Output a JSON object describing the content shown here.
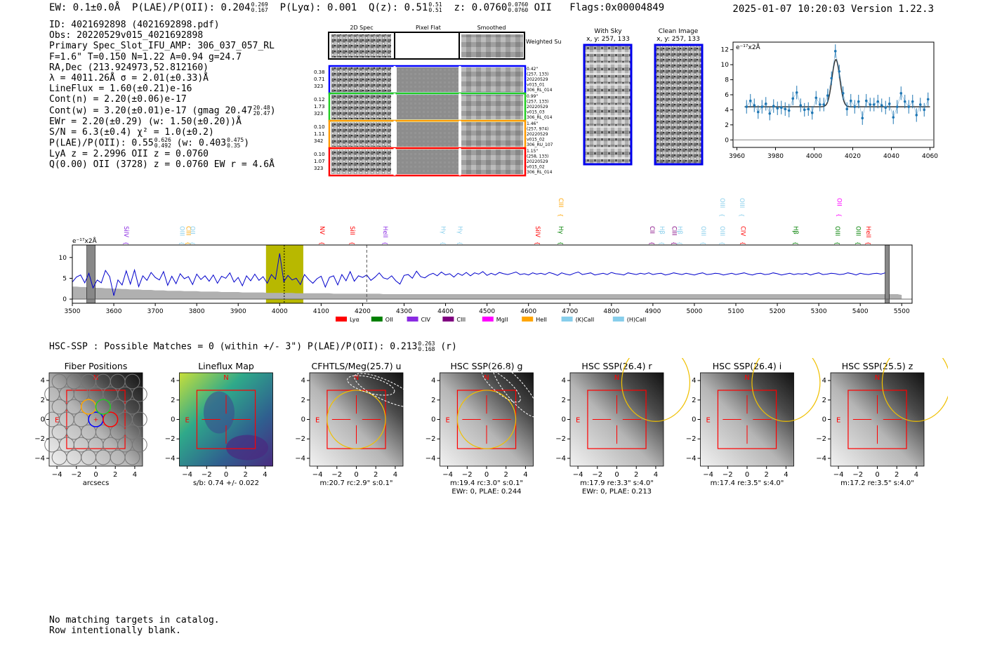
{
  "header": {
    "ew": "EW: 0.1±0.0Å",
    "plae_label": "P(LAE)/P(OII):",
    "plae_val": "0.204",
    "plae_hi": "0.269",
    "plae_lo": "0.167",
    "plya": "P(Lyα): 0.001",
    "qz_label": "Q(z):",
    "qz_val": "0.51",
    "qz_hi": "0.51",
    "qz_lo": "0.51",
    "z_label": "z:",
    "z_val": "0.0760",
    "z_hi": "0.0760",
    "z_lo": "0.0760",
    "z_line": "OII",
    "flags": "Flags:0x00004849",
    "datestamp": "2025-01-07 10:20:03  Version 1.22.3"
  },
  "info": {
    "id": "ID: 4021692898 (4021692898.pdf)",
    "obs": "Obs: 20220529v015_4021692898",
    "primary": "Primary Spec_Slot_IFU_AMP: 306_037_057_RL",
    "fwhm": "F=1.6\"  T=0.150  N=1.22  A=0.94  g=24.7",
    "radec": "RA,Dec (213.924973,52.812160)",
    "lambda": "λ = 4011.26Å  σ = 2.01(±0.33)Å",
    "lineflux": "LineFlux = 1.60(±0.21)e-16",
    "contn": "Cont(n) = 2.20(±0.06)e-17",
    "contw": "Cont(w) = 3.20(±0.01)e-17 (gmag 20.47",
    "gmag_hi": "20.48",
    "gmag_lo": "20.47",
    "ewr": "EWr = 2.20(±0.29) (w: 1.50(±0.20))Å",
    "sn": "S/N = 6.3(±0.4)  χ² = 1.0(±0.2)",
    "plae": "P(LAE)/P(OII): 0.55",
    "plae_hi": "0.626",
    "plae_lo": "0.492",
    "plae_w": "(w: 0.403",
    "plae_w_hi": "0.475",
    "plae_w_lo": "0.35",
    "lya_z": "LyA z = 2.2996  OII z = 0.0760",
    "q_line": "Q(0.00) OII (3728) z = 0.0760  EW r = 4.6Å"
  },
  "cutouts": {
    "col_2d": "2D Spec",
    "col_flat": "Pixel Flat",
    "col_smooth": "Smoothed",
    "weighted": "Weighted Sum",
    "rows": [
      {
        "color": "#0000ff",
        "left": [
          "0.38",
          "0.71",
          "323"
        ],
        "right": [
          "0.42\"",
          "(257, 133)",
          "20220529",
          "v015_01",
          "306_RL_014"
        ]
      },
      {
        "color": "#22cc22",
        "left": [
          "0.12",
          "1.73",
          "323"
        ],
        "right": [
          "0.99\"",
          "(257, 133)",
          "20220529",
          "v015_03",
          "306_RL_014"
        ]
      },
      {
        "color": "#ff9900",
        "left": [
          "0.10",
          "1.11",
          "342"
        ],
        "right": [
          "1.46\"",
          "(257, 974)",
          "20220529",
          "v015_02",
          "306_RU_107"
        ]
      },
      {
        "color": "#ff0000",
        "left": [
          "0.10",
          "1.07",
          "323"
        ],
        "right": [
          "1.15\"",
          "(258, 133)",
          "20220529",
          "v015_02",
          "306_RL_014"
        ]
      }
    ]
  },
  "sky": {
    "with_sky": "With Sky",
    "clean": "Clean Image",
    "coords": "x, y: 257, 133"
  },
  "zoom_chart": {
    "ylabel": "e⁻¹⁷x2Å"
  },
  "spectrum": {
    "ylabel": "e⁻¹⁷x2Å",
    "legend": [
      {
        "name": "Lyα",
        "color": "#ff0000"
      },
      {
        "name": "OII",
        "color": "#008000"
      },
      {
        "name": "CIV",
        "color": "#8a2be2"
      },
      {
        "name": "CIII",
        "color": "#800080"
      },
      {
        "name": "MgII",
        "color": "#ff00ff"
      },
      {
        "name": "HeII",
        "color": "#ffa500"
      },
      {
        "name": "(K)CaII",
        "color": "#87ceeb"
      },
      {
        "name": "(H)CaII",
        "color": "#87ceeb"
      }
    ],
    "lines": [
      {
        "name": "SiIV",
        "w": 3620,
        "color": "#8a2be2",
        "row": 0
      },
      {
        "name": "OIII",
        "w": 3755,
        "color": "#87ceeb",
        "row": 0
      },
      {
        "name": "CIII",
        "w": 3770,
        "color": "#ffa500",
        "row": 0
      },
      {
        "name": "OII",
        "w": 3780,
        "color": "#87ceeb",
        "row": 0
      },
      {
        "name": "NV",
        "w": 4093,
        "color": "#ff0000",
        "row": 0
      },
      {
        "name": "SiII",
        "w": 4165,
        "color": "#ff0000",
        "row": 0
      },
      {
        "name": "HeII",
        "w": 4245,
        "color": "#8a2be2",
        "row": 0
      },
      {
        "name": "Hγ",
        "w": 4385,
        "color": "#87ceeb",
        "row": 0
      },
      {
        "name": "Hγ",
        "w": 4425,
        "color": "#87ceeb",
        "row": 0
      },
      {
        "name": "SiIV",
        "w": 4612,
        "color": "#ff0000",
        "row": 0
      },
      {
        "name": "CIII",
        "w": 4668,
        "color": "#ffa500",
        "row": 1
      },
      {
        "name": "Hγ",
        "w": 4668,
        "color": "#008000",
        "row": 0
      },
      {
        "name": "CII",
        "w": 4888,
        "color": "#800080",
        "row": 0
      },
      {
        "name": "Hβ",
        "w": 4912,
        "color": "#87ceeb",
        "row": 0
      },
      {
        "name": "CIII",
        "w": 4942,
        "color": "#800080",
        "row": 0
      },
      {
        "name": "Hβ",
        "w": 4955,
        "color": "#87ceeb",
        "row": 0
      },
      {
        "name": "OIII",
        "w": 5012,
        "color": "#87ceeb",
        "row": 0
      },
      {
        "name": "OIII",
        "w": 5058,
        "color": "#87ceeb",
        "row": 1
      },
      {
        "name": "OIII",
        "w": 5058,
        "color": "#87ceeb",
        "row": 0
      },
      {
        "name": "OIII",
        "w": 5105,
        "color": "#87ceeb",
        "row": 1
      },
      {
        "name": "CIV",
        "w": 5108,
        "color": "#ff0000",
        "row": 0
      },
      {
        "name": "Hβ",
        "w": 5235,
        "color": "#008000",
        "row": 0
      },
      {
        "name": "OII",
        "w": 5340,
        "color": "#ff00ff",
        "row": 1
      },
      {
        "name": "OIII",
        "w": 5335,
        "color": "#008000",
        "row": 0
      },
      {
        "name": "OIII",
        "w": 5385,
        "color": "#008000",
        "row": 0
      },
      {
        "name": "HeII",
        "w": 5410,
        "color": "#ff0000",
        "row": 0
      }
    ]
  },
  "hsc": {
    "text": "HSC-SSP : Possible Matches = 0 (within +/- 3\")  P(LAE)/P(OII): 0.213",
    "hi": "0.263",
    "lo": "0.168",
    "band": "(r)"
  },
  "panels": [
    {
      "title": "Fiber Positions",
      "sub1": "arcsecs",
      "sub2": ""
    },
    {
      "title": "Lineflux Map",
      "sub1": "s/b: 0.74 +/- 0.022",
      "sub2": ""
    },
    {
      "title": "CFHTLS/Meg(25.7) u",
      "sub1": "m:20.7 rc:2.9\"  s:0.1\"",
      "sub2": ""
    },
    {
      "title": "HSC SSP(26.8) g",
      "sub1": "m:19.4 rc:3.0\"  s:0.1\"",
      "sub2": "EWr: 0, PLAE: 0.244"
    },
    {
      "title": "HSC SSP(26.4) r",
      "sub1": "m:17.9  re:3.3\"  s:4.0\"",
      "sub2": "EWr: 0, PLAE: 0.213"
    },
    {
      "title": "HSC SSP(26.4) i",
      "sub1": "m:17.4  re:3.5\"  s:4.0\"",
      "sub2": ""
    },
    {
      "title": "HSC SSP(25.5) z",
      "sub1": "m:17.2  re:3.5\"  s:4.0\"",
      "sub2": ""
    }
  ],
  "panel_axes": {
    "ticks": [
      "−4",
      "−2",
      "0",
      "2",
      "4"
    ],
    "north": "N",
    "east": "E"
  },
  "footer": {
    "line1": "No matching targets in catalog.",
    "line2": "Row intentionally blank."
  },
  "colors": {
    "spectrum": "#0000cc",
    "fit": "#333333",
    "points": "#1f77b4",
    "highlight": "#b8b800",
    "box": "#ff0000"
  },
  "chart_data": [
    {
      "type": "scatter",
      "title": "",
      "xlabel": "",
      "ylabel": "e⁻¹⁷x2Å",
      "xlim": [
        3958,
        4062
      ],
      "ylim": [
        -1,
        13
      ],
      "xticks": [
        3960,
        3980,
        4000,
        4020,
        4040,
        4060
      ],
      "yticks": [
        0,
        2,
        4,
        6,
        8,
        10,
        12
      ],
      "x": [
        3965,
        3967,
        3969,
        3971,
        3973,
        3975,
        3977,
        3979,
        3981,
        3983,
        3985,
        3987,
        3989,
        3991,
        3993,
        3995,
        3997,
        3999,
        4001,
        4003,
        4005,
        4007,
        4009,
        4011,
        4013,
        4015,
        4017,
        4019,
        4021,
        4023,
        4025,
        4027,
        4029,
        4031,
        4033,
        4035,
        4037,
        4039,
        4041,
        4043,
        4045,
        4047,
        4049,
        4051,
        4053,
        4055,
        4057,
        4059
      ],
      "y": [
        4.4,
        5.2,
        4.6,
        3.7,
        4.4,
        4.8,
        3.5,
        4.5,
        4.2,
        4.3,
        4.1,
        3.9,
        5.5,
        6.3,
        4.6,
        4.0,
        4.1,
        3.6,
        5.6,
        4.7,
        4.7,
        5.9,
        8.2,
        11.8,
        9.1,
        6.2,
        4.1,
        5.2,
        4.4,
        5.1,
        2.9,
        5.2,
        4.7,
        4.7,
        5.1,
        4.6,
        4.3,
        4.8,
        3.0,
        4.4,
        6.2,
        5.1,
        4.4,
        5.1,
        3.3,
        4.7,
        4.0,
        5.4
      ],
      "fit_baseline": 4.4,
      "fit_peak": 10.7,
      "fit_center": 4011.26,
      "fit_sigma": 2.01
    },
    {
      "type": "line",
      "title": "",
      "xlabel": "",
      "ylabel": "e⁻¹⁷x2Å",
      "xlim": [
        3500,
        5525
      ],
      "ylim": [
        -1,
        13
      ],
      "xticks": [
        3500,
        3600,
        3700,
        3800,
        3900,
        4000,
        4100,
        4200,
        4300,
        4400,
        4500,
        4600,
        4700,
        4800,
        4900,
        5000,
        5100,
        5200,
        5300,
        5400,
        5500
      ],
      "yticks": [
        0,
        5,
        10
      ],
      "series": [
        {
          "name": "",
          "x_start": 3500,
          "x_step": 10,
          "note_levels": "flux"
        },
        {
          "name": "",
          "x_start": 3500,
          "x_step": 10,
          "note_levels": "error"
        }
      ],
      "flux": [
        4.1,
        5.3,
        5.8,
        3.9,
        6.2,
        2.7,
        4.6,
        3.9,
        6.9,
        5.4,
        0.8,
        4.6,
        3.4,
        6.8,
        3.6,
        7.0,
        3.0,
        5.6,
        4.5,
        6.4,
        5.2,
        4.6,
        6.6,
        3.3,
        5.5,
        3.7,
        6.1,
        4.9,
        5.4,
        3.5,
        6.0,
        4.7,
        5.6,
        4.3,
        5.8,
        3.8,
        5.5,
        5.0,
        6.3,
        4.1,
        5.2,
        3.2,
        5.6,
        4.4,
        6.0,
        4.5,
        5.4,
        3.8,
        5.9,
        4.8,
        11.0,
        4.2,
        5.7,
        4.6,
        5.0,
        3.5,
        5.9,
        4.7,
        3.8,
        4.9,
        5.5,
        2.9,
        5.2,
        5.6,
        3.4,
        5.9,
        4.4,
        6.6,
        4.3,
        5.6,
        5.2,
        5.8,
        4.5,
        5.3,
        6.3,
        5.1,
        4.8,
        5.6,
        4.4,
        3.6,
        5.7,
        5.9,
        5.0,
        6.7,
        5.4,
        5.1,
        5.8,
        6.2,
        5.6,
        6.5,
        5.8,
        6.1,
        5.3,
        6.2,
        5.7,
        6.4,
        5.6,
        6.3,
        6.0,
        6.6,
        5.7,
        6.2,
        5.8,
        6.4,
        6.1,
        5.9,
        6.2,
        6.5,
        5.9,
        6.1,
        5.8,
        6.3,
        6.0,
        6.2,
        5.9,
        6.4,
        6.1,
        5.7,
        6.3,
        6.0,
        5.8,
        6.2,
        6.5,
        5.9,
        6.1,
        6.3,
        5.8,
        6.0,
        6.2,
        5.9,
        6.4,
        6.1,
        6.0,
        5.8,
        6.3,
        6.1,
        5.9,
        6.2,
        6.0,
        6.3,
        5.9,
        6.1,
        6.2,
        5.8,
        6.0,
        6.3,
        6.1,
        5.9,
        6.2,
        6.0,
        5.8,
        6.1,
        6.3,
        5.9,
        6.0,
        6.2,
        6.1,
        5.8,
        6.0,
        6.2,
        5.9,
        6.1,
        6.3,
        6.0,
        5.8,
        6.1,
        6.2,
        5.9,
        6.0,
        6.3,
        6.1,
        5.8,
        6.0,
        6.2,
        5.9,
        6.1,
        6.0,
        6.2,
        5.8,
        6.1,
        6.3,
        5.9,
        6.0,
        6.2,
        6.1,
        5.9,
        6.0,
        6.3,
        6.1,
        5.8,
        6.2,
        6.0,
        5.9,
        6.1,
        6.2,
        6.0,
        6.3
      ],
      "error": [
        3.0,
        3.0,
        2.9,
        2.9,
        2.8,
        2.8,
        2.7,
        2.7,
        2.6,
        2.6,
        2.5,
        2.5,
        2.4,
        2.4,
        2.3,
        2.3,
        2.3,
        2.2,
        2.2,
        2.2,
        2.1,
        2.1,
        2.1,
        2.0,
        2.0,
        2.0,
        2.0,
        1.9,
        1.9,
        1.9,
        1.9,
        1.8,
        1.8,
        1.8,
        1.8,
        1.8,
        1.7,
        1.7,
        1.7,
        1.7,
        1.7,
        1.6,
        1.6,
        1.6,
        1.6,
        1.6,
        1.6,
        1.5,
        1.5,
        1.5,
        1.5,
        1.5,
        1.5,
        1.5,
        1.4,
        1.4,
        1.4,
        1.4,
        1.4,
        1.4,
        1.4,
        1.4,
        1.4,
        1.3,
        1.3,
        1.3,
        1.3,
        1.3,
        1.3,
        1.3,
        1.3,
        1.3,
        1.3,
        1.3,
        1.3,
        1.2,
        1.2,
        1.2,
        1.2,
        1.2,
        1.2,
        1.2,
        1.2,
        1.2,
        1.2,
        1.2,
        1.2,
        1.2,
        1.2,
        1.2,
        1.2,
        1.2,
        1.2,
        1.2,
        1.2,
        1.2,
        1.2,
        1.2,
        1.2,
        1.2,
        1.2,
        1.2,
        1.2,
        1.2,
        1.2,
        1.2,
        1.2,
        1.2,
        1.2,
        1.2,
        1.2,
        1.2,
        1.2,
        1.2,
        1.2,
        1.2,
        1.2,
        1.2,
        1.2,
        1.2,
        1.2,
        1.2,
        1.2,
        1.2,
        1.2,
        1.2,
        1.2,
        1.2,
        1.2,
        1.2,
        1.2,
        1.2,
        1.2,
        1.2,
        1.2,
        1.2,
        1.2,
        1.2,
        1.2,
        1.2,
        1.2,
        1.2,
        1.2,
        1.2,
        1.2,
        1.2,
        1.2,
        1.2,
        1.2,
        1.2,
        1.2,
        1.2,
        1.2,
        1.2,
        1.2,
        1.2,
        1.2,
        1.2,
        1.2,
        1.2,
        1.2,
        1.2,
        1.2,
        1.2,
        1.2,
        1.2,
        1.2,
        1.2,
        1.2,
        1.2,
        1.2,
        1.2,
        1.2,
        1.2,
        1.2,
        1.2,
        1.2,
        1.2,
        1.2,
        1.2,
        1.2,
        1.2,
        1.2,
        1.2,
        1.2,
        1.2,
        1.2,
        1.2,
        1.2,
        1.2,
        1.2,
        1.2,
        1.2,
        1.2,
        1.2,
        1.2,
        1.2,
        1.2,
        1.2,
        1.2,
        1.0
      ],
      "highlight_range": [
        3967,
        4057
      ],
      "line_marker": 4011,
      "dashed_marker": 4210,
      "masked": [
        [
          3535,
          3555
        ],
        [
          5460,
          5470
        ]
      ]
    }
  ]
}
